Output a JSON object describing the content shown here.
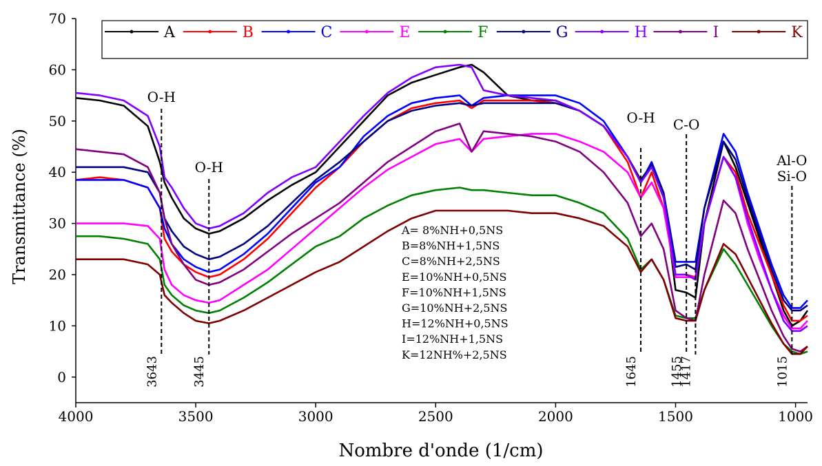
{
  "chart_data": {
    "type": "line",
    "xlabel": "Nombre d'onde (1/cm)",
    "ylabel": "Transmittance (%)",
    "xlim": [
      4000,
      950
    ],
    "ylim": [
      -5,
      70
    ],
    "xticks": [
      4000,
      3500,
      3000,
      2500,
      2000,
      1500,
      1000
    ],
    "yticks": [
      0,
      10,
      20,
      30,
      40,
      50,
      60,
      70
    ],
    "x": [
      4000,
      3900,
      3800,
      3700,
      3650,
      3630,
      3600,
      3550,
      3500,
      3445,
      3400,
      3300,
      3200,
      3100,
      3000,
      2900,
      2800,
      2700,
      2600,
      2500,
      2400,
      2350,
      2300,
      2200,
      2100,
      2000,
      1900,
      1800,
      1700,
      1645,
      1600,
      1550,
      1500,
      1455,
      1417,
      1380,
      1300,
      1250,
      1200,
      1150,
      1100,
      1050,
      1015,
      980,
      950
    ],
    "series": [
      {
        "name": "A",
        "color": "#000000",
        "values": [
          54.5,
          54,
          53,
          49,
          42,
          38,
          35,
          31,
          29,
          28,
          28.5,
          31,
          34.5,
          37.5,
          40,
          45,
          50,
          55,
          57.5,
          59,
          60.5,
          61,
          59.5,
          55,
          54,
          54,
          52,
          49,
          43,
          38.5,
          41.5,
          36,
          17,
          16.5,
          15.5,
          30,
          46,
          41,
          34,
          27,
          20,
          13,
          10,
          11,
          13
        ]
      },
      {
        "name": "B",
        "color": "#ff0000",
        "values": [
          38.5,
          39,
          38.5,
          37,
          33,
          27,
          24.5,
          22,
          20.5,
          19.5,
          20,
          23,
          27,
          32,
          37,
          41,
          46,
          50,
          52.5,
          53.5,
          54,
          52.5,
          54,
          54,
          54,
          53.5,
          52,
          49,
          42,
          35,
          40,
          33,
          20,
          20,
          19.5,
          30,
          43,
          40,
          32,
          26,
          20,
          14,
          11,
          11,
          12
        ]
      },
      {
        "name": "C",
        "color": "#0000ff",
        "values": [
          38.5,
          38.5,
          38.5,
          37,
          33,
          29,
          26,
          23,
          21.5,
          20.5,
          21,
          24,
          28,
          33,
          38,
          41,
          47,
          51,
          53.5,
          54.5,
          55,
          53,
          54.5,
          55,
          55,
          55,
          53.5,
          50,
          43,
          38,
          42,
          36,
          22.5,
          22.5,
          22.5,
          33,
          47.5,
          44,
          36,
          29,
          22,
          16,
          13.5,
          13.5,
          15
        ]
      },
      {
        "name": "E",
        "color": "#ff00ff",
        "values": [
          30,
          30,
          30,
          29.5,
          27,
          21,
          18,
          16,
          15,
          14.5,
          15,
          18,
          21,
          25,
          29,
          33,
          37,
          40.5,
          43,
          45.5,
          46.5,
          44,
          46.5,
          47,
          47.5,
          47.5,
          46,
          44,
          40,
          35,
          38,
          33,
          19.5,
          19.5,
          19.5,
          30,
          43,
          39,
          30,
          23,
          17,
          12,
          9.5,
          9.5,
          11
        ]
      },
      {
        "name": "F",
        "color": "#008000",
        "values": [
          27.5,
          27.5,
          27,
          26,
          23,
          18,
          16,
          14,
          13,
          12.5,
          13,
          15.5,
          18.5,
          22,
          25.5,
          27.5,
          31,
          33.5,
          35.5,
          36.5,
          37,
          36.5,
          36.5,
          36,
          35.5,
          35.5,
          34,
          32,
          27,
          21,
          23,
          19,
          12,
          11.5,
          11.5,
          17,
          25,
          22,
          18,
          14,
          10,
          6.5,
          5,
          4.5,
          5
        ]
      },
      {
        "name": "G",
        "color": "#000080",
        "values": [
          41,
          41,
          41,
          40,
          36,
          31,
          28.5,
          25.5,
          24,
          23,
          23.5,
          26,
          29.5,
          34,
          38.5,
          42,
          46,
          50,
          52,
          53,
          53.5,
          53,
          53.5,
          53.5,
          53.5,
          53.5,
          52,
          49,
          43,
          38,
          41.5,
          36,
          21.5,
          22,
          21,
          33,
          46,
          42.5,
          35,
          28,
          21,
          15,
          13,
          13,
          14
        ]
      },
      {
        "name": "H",
        "color": "#8000ff",
        "values": [
          55.5,
          55,
          54,
          51,
          45,
          39,
          37,
          33,
          30,
          29,
          29.5,
          32,
          36,
          39,
          41,
          46,
          51,
          55.5,
          58.5,
          60.5,
          61,
          60.5,
          56,
          55,
          54.5,
          54,
          52,
          49,
          43,
          38,
          41,
          35,
          20,
          20,
          19,
          30,
          43,
          39,
          31,
          24,
          17,
          11,
          9,
          9,
          10
        ]
      },
      {
        "name": "I",
        "color": "#800080",
        "values": [
          44.5,
          44,
          43.5,
          41,
          36,
          31,
          26,
          22,
          19,
          18,
          18.5,
          21,
          24.5,
          28,
          31,
          34,
          38,
          42,
          45,
          48,
          49.5,
          44,
          48,
          47.5,
          47,
          46,
          44,
          40,
          34,
          27.5,
          30,
          25,
          13,
          11.5,
          11,
          20,
          34.5,
          32,
          25,
          19,
          13,
          8,
          5.5,
          5,
          6
        ]
      },
      {
        "name": "K",
        "color": "#800000",
        "values": [
          23,
          23,
          23,
          22,
          20,
          16,
          14.5,
          12.5,
          11,
          10.5,
          11,
          13,
          15.5,
          18,
          20.5,
          22.5,
          25.5,
          28.5,
          31,
          32.5,
          32.5,
          32.5,
          32.5,
          32.5,
          32,
          32,
          31,
          29.5,
          25.5,
          20.5,
          23,
          19,
          11.5,
          11,
          11,
          17,
          26,
          24,
          19.5,
          15,
          10.5,
          6.5,
          4.5,
          4.5,
          6
        ]
      }
    ],
    "annotations": [
      {
        "x": 3643,
        "label": "O-H"
      },
      {
        "x": 3445,
        "label": "O-H"
      },
      {
        "x": 1645,
        "label": "O-H"
      },
      {
        "x": 1455,
        "label": "C-O"
      },
      {
        "x": 1417
      },
      {
        "x": 1015,
        "label": [
          "Al-O",
          "Si-O"
        ]
      }
    ],
    "notes": [
      "A= 8%NH+0,5NS",
      "B=8%NH+1,5NS",
      "C=8%NH+2,5NS",
      "E=10%NH+0,5NS",
      "F=10%NH+1,5NS",
      "G=10%NH+2,5NS",
      "H=12%NH+0,5NS",
      "I=12%NH+1,5NS",
      "K=12NH%+2,5NS"
    ]
  }
}
